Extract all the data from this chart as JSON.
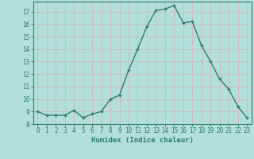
{
  "xlabel": "Humidex (Indice chaleur)",
  "x": [
    0,
    1,
    2,
    3,
    4,
    5,
    6,
    7,
    8,
    9,
    10,
    11,
    12,
    13,
    14,
    15,
    16,
    17,
    18,
    19,
    20,
    21,
    22,
    23
  ],
  "y": [
    9,
    8.7,
    8.7,
    8.7,
    9.1,
    8.5,
    8.8,
    9.0,
    10.0,
    10.3,
    12.3,
    14.0,
    15.8,
    17.1,
    17.2,
    17.5,
    16.1,
    16.2,
    14.3,
    13.0,
    11.6,
    10.8,
    9.4,
    8.5
  ],
  "line_color": "#2e7d6e",
  "bg_color": "#b2dfd7",
  "grid_color": "#d4b8b8",
  "ylim": [
    8,
    17.8
  ],
  "yticks": [
    8,
    9,
    10,
    11,
    12,
    13,
    14,
    15,
    16,
    17
  ],
  "xticks": [
    0,
    1,
    2,
    3,
    4,
    5,
    6,
    7,
    8,
    9,
    10,
    11,
    12,
    13,
    14,
    15,
    16,
    17,
    18,
    19,
    20,
    21,
    22,
    23
  ],
  "xtick_labels": [
    "0",
    "1",
    "2",
    "3",
    "4",
    "5",
    "6",
    "7",
    "8",
    "9",
    "10",
    "11",
    "12",
    "13",
    "14",
    "15",
    "16",
    "17",
    "18",
    "19",
    "20",
    "21",
    "22",
    "23"
  ],
  "marker": "+",
  "markersize": 3,
  "linewidth": 1.0,
  "tick_fontsize": 5.5,
  "xlabel_fontsize": 6.5,
  "xlabel_fontweight": "bold"
}
